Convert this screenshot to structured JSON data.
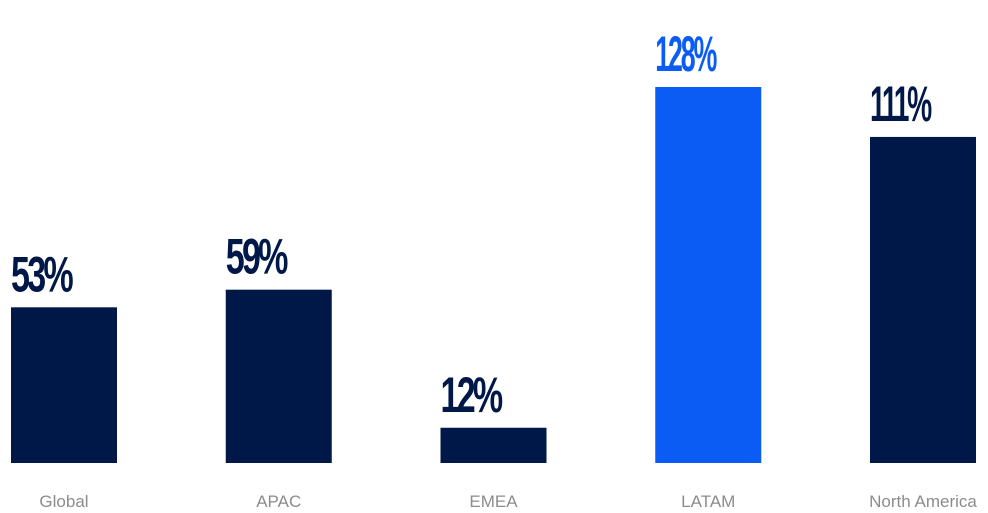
{
  "chart_data": {
    "type": "bar",
    "categories": [
      "Global",
      "APAC",
      "EMEA",
      "LATAM",
      "North America"
    ],
    "values": [
      53,
      59,
      12,
      128,
      111
    ],
    "value_labels": [
      "53%",
      "59%",
      "12%",
      "128%",
      "111%"
    ],
    "unit": "%",
    "ylim": [
      0,
      128
    ],
    "grid": false,
    "highlight_category": "LATAM",
    "colors": {
      "default": "#001847",
      "highlight": "#0a5cf5",
      "label_default": "#001847",
      "label_highlight": "#0a5cf5",
      "category_text": "#8c8c8c"
    }
  }
}
